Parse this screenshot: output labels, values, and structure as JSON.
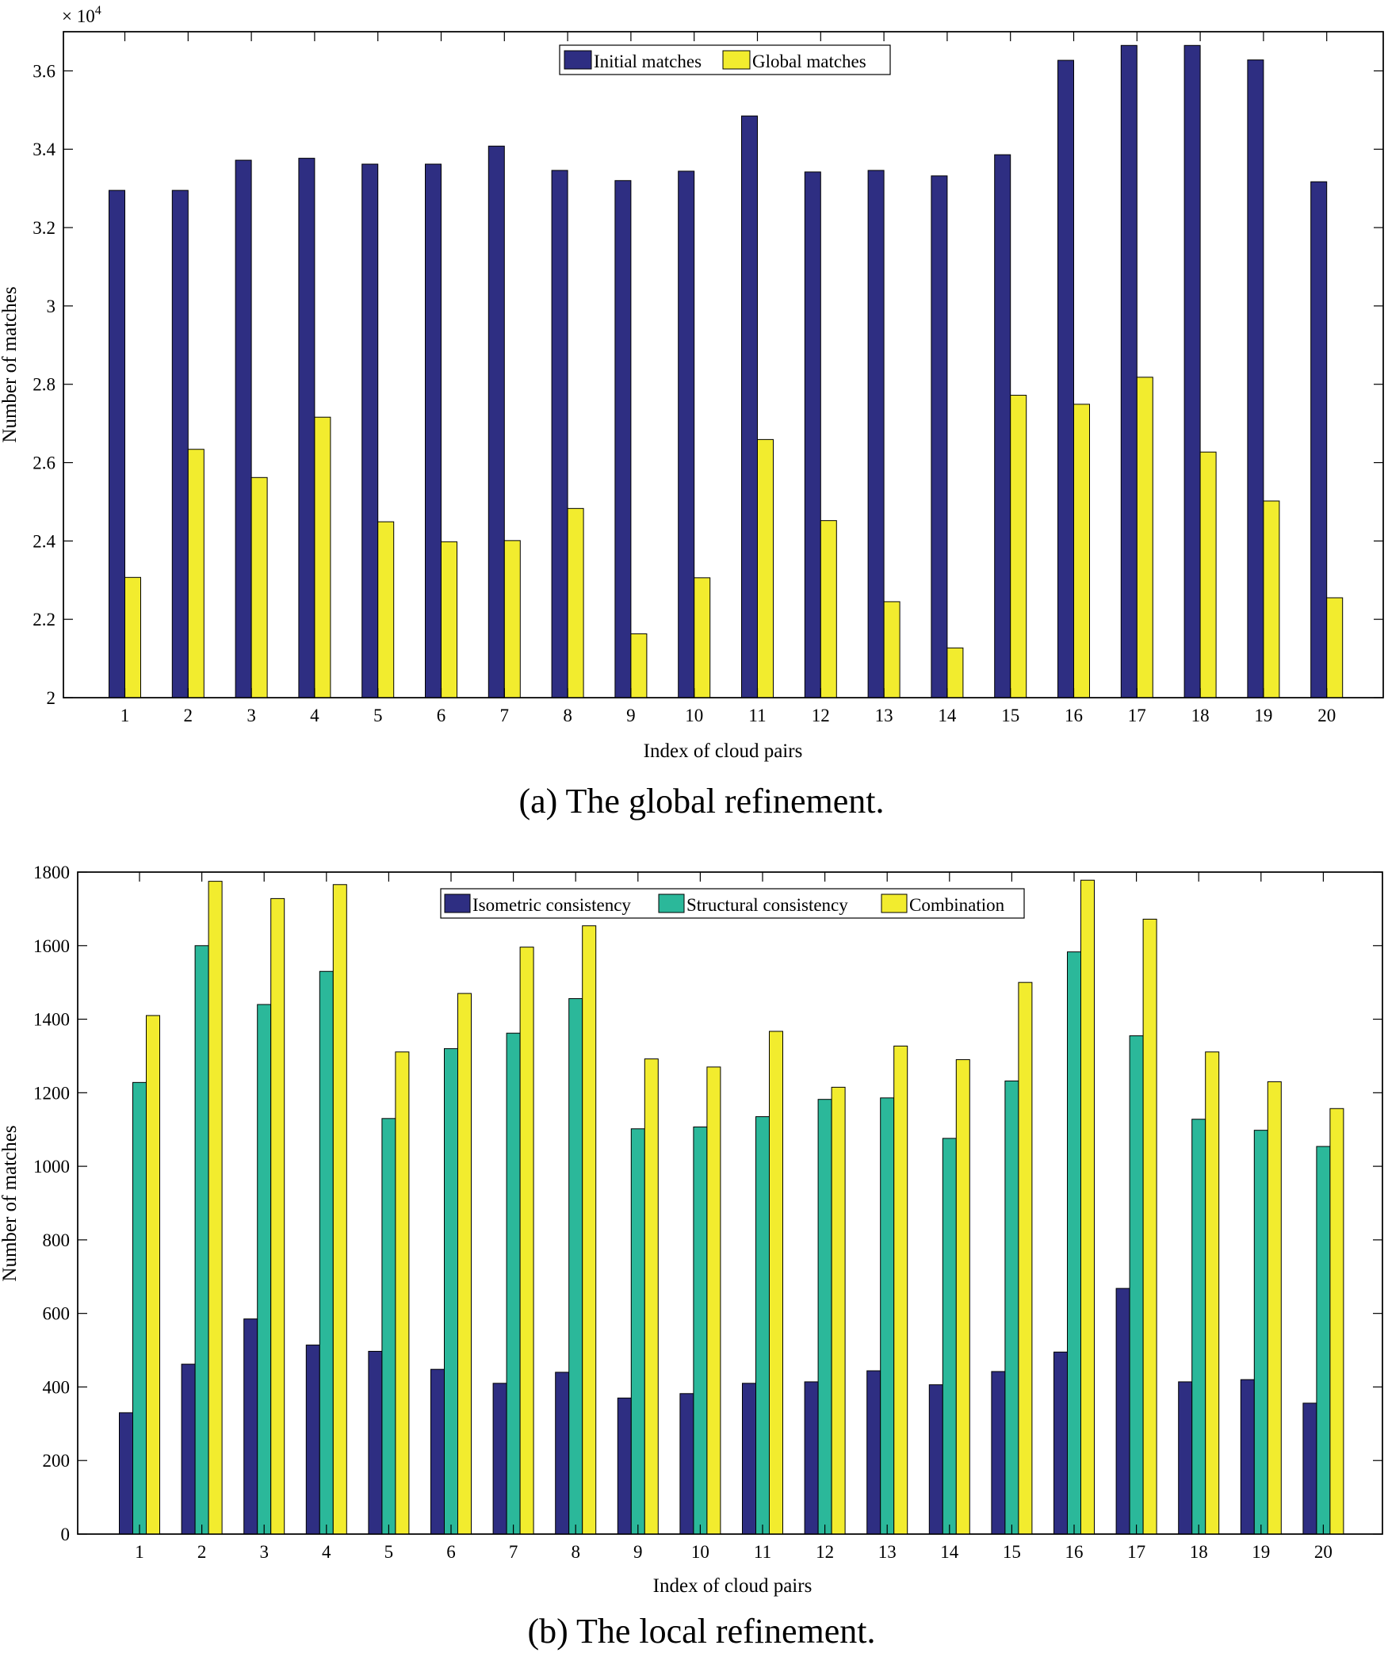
{
  "chart_data": [
    {
      "type": "bar",
      "panel_caption": "(a) The global refinement.",
      "xlabel": "Index of cloud pairs",
      "ylabel": "Number of matches",
      "exponent_label": "× 10",
      "exponent_power": "4",
      "ylim": [
        2.0,
        3.7
      ],
      "yticks": [
        2,
        2.2,
        2.4,
        2.6,
        2.8,
        3,
        3.2,
        3.4,
        3.6
      ],
      "ytick_labels": [
        "2",
        "2.2",
        "2.4",
        "2.6",
        "2.8",
        "3",
        "3.2",
        "3.4",
        "3.6"
      ],
      "categories": [
        "1",
        "2",
        "3",
        "4",
        "5",
        "6",
        "7",
        "8",
        "9",
        "10",
        "11",
        "12",
        "13",
        "14",
        "15",
        "16",
        "17",
        "18",
        "19",
        "20"
      ],
      "series": [
        {
          "name": "Initial matches",
          "color": "#2e2e82",
          "values": [
            3.295,
            3.295,
            3.372,
            3.377,
            3.362,
            3.362,
            3.408,
            3.346,
            3.32,
            3.344,
            3.485,
            3.342,
            3.346,
            3.332,
            3.386,
            3.627,
            3.665,
            3.665,
            3.628,
            3.317
          ]
        },
        {
          "name": "Global matches",
          "color": "#f2ec2e",
          "values": [
            2.307,
            2.634,
            2.562,
            2.716,
            2.449,
            2.398,
            2.401,
            2.483,
            2.163,
            2.306,
            2.659,
            2.452,
            2.245,
            2.127,
            2.772,
            2.749,
            2.818,
            2.627,
            2.502,
            2.255
          ]
        }
      ],
      "legend_position": "top-center"
    },
    {
      "type": "bar",
      "panel_caption": "(b) The local refinement.",
      "xlabel": "Index of cloud pairs",
      "ylabel": "Number of matches",
      "ylim": [
        0,
        1800
      ],
      "yticks": [
        0,
        200,
        400,
        600,
        800,
        1000,
        1200,
        1400,
        1600,
        1800
      ],
      "ytick_labels": [
        "0",
        "200",
        "400",
        "600",
        "800",
        "1000",
        "1200",
        "1400",
        "1600",
        "1800"
      ],
      "categories": [
        "1",
        "2",
        "3",
        "4",
        "5",
        "6",
        "7",
        "8",
        "9",
        "10",
        "11",
        "12",
        "13",
        "14",
        "15",
        "16",
        "17",
        "18",
        "19",
        "20"
      ],
      "series": [
        {
          "name": "Isometric consistency",
          "color": "#2e2e82",
          "values": [
            330,
            462,
            585,
            514,
            497,
            448,
            410,
            440,
            370,
            382,
            410,
            414,
            444,
            406,
            442,
            495,
            668,
            414,
            420,
            356
          ]
        },
        {
          "name": "Structural consistency",
          "color": "#2bb89a",
          "values": [
            1228,
            1600,
            1440,
            1530,
            1130,
            1320,
            1362,
            1456,
            1102,
            1107,
            1135,
            1182,
            1186,
            1076,
            1232,
            1583,
            1355,
            1128,
            1098,
            1054
          ]
        },
        {
          "name": "Combination",
          "color": "#f2ec2e",
          "values": [
            1410,
            1775,
            1728,
            1766,
            1311,
            1470,
            1596,
            1654,
            1292,
            1270,
            1367,
            1215,
            1327,
            1290,
            1500,
            1778,
            1672,
            1311,
            1230,
            1157
          ]
        }
      ],
      "legend_position": "top-center"
    }
  ]
}
